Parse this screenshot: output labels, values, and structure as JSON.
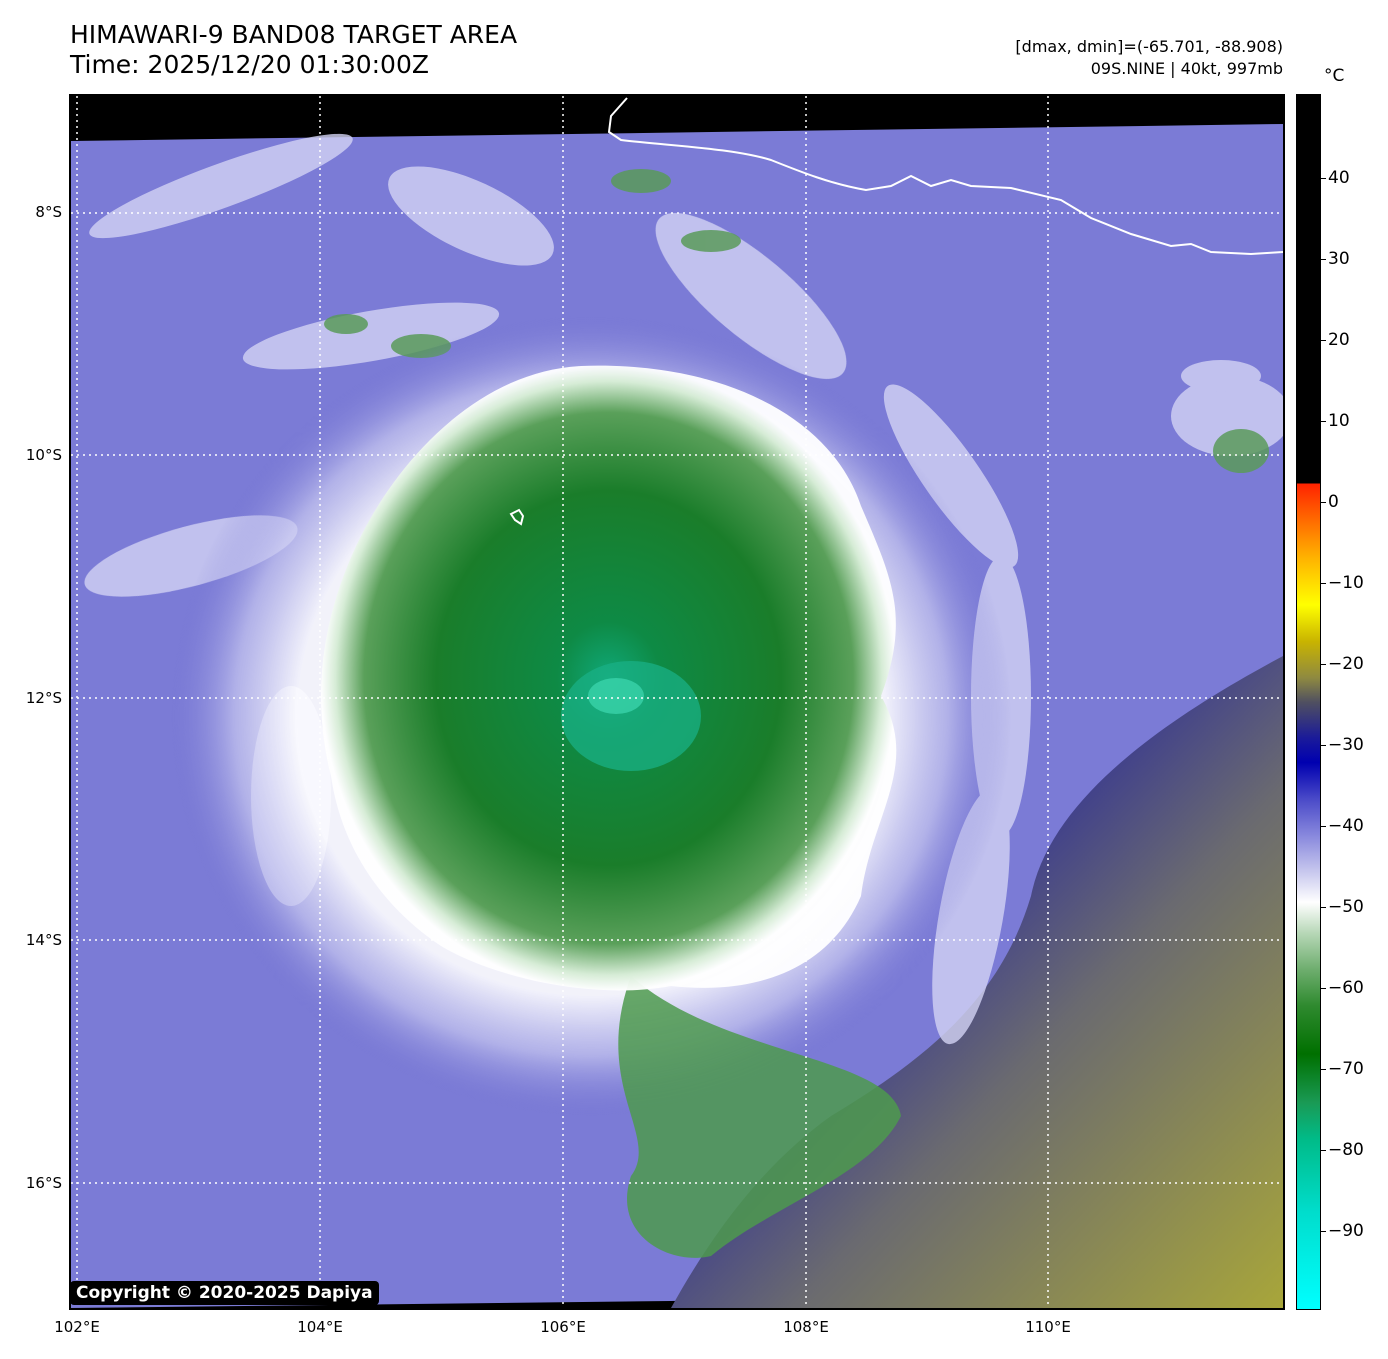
{
  "header": {
    "title_line1": "HIMAWARI-9 BAND08 TARGET AREA",
    "title_line2": "Time: 2025/12/20 01:30:00Z",
    "range_text": "[dmax, dmin]=(-65.701, -88.908)",
    "storm_text": "09S.NINE | 40kt, 997mb"
  },
  "axes": {
    "latitude_labels": [
      "8°S",
      "10°S",
      "12°S",
      "14°S",
      "16°S"
    ],
    "longitude_labels": [
      "102°E",
      "104°E",
      "106°E",
      "108°E",
      "110°E"
    ],
    "gridlines": "dotted white"
  },
  "colorbar": {
    "unit": "°C",
    "labels": [
      "40",
      "30",
      "20",
      "10",
      "0",
      "−10",
      "−20",
      "−30",
      "−40",
      "−50",
      "−60",
      "−70",
      "−80",
      "−90"
    ]
  },
  "copyright": "Copyright © 2020-2025 Dapiya",
  "colors": {
    "background_cloud": "#7b7bd6",
    "cold_core": "#1f7f2f",
    "coldest_top": "#00c99a",
    "warm_sea_area": "#9a9a3a",
    "land_outline": "#ffffff"
  }
}
